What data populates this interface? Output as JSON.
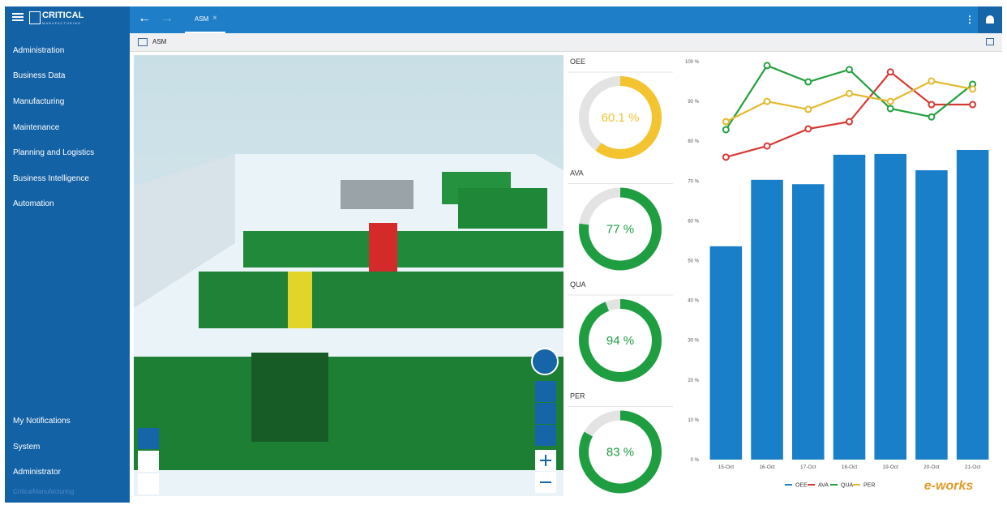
{
  "sidebar": {
    "brand": "CRITICAL",
    "brand_sub": "MANUFACTURING",
    "menu": [
      "Administration",
      "Business Data",
      "Manufacturing",
      "Maintenance",
      "Planning and Logistics",
      "Business Intelligence",
      "Automation"
    ],
    "bottom_menu": [
      "My Notifications",
      "System",
      "Administrator"
    ],
    "footer": "CriticalManufacturing"
  },
  "tab": "ASM",
  "page_title": "ASM",
  "gauges": [
    {
      "name": "OEE",
      "value": 60.1,
      "value_label": "60.1 %",
      "color": "#f4c430"
    },
    {
      "name": "AVA",
      "value": 77,
      "value_label": "77 %",
      "color": "#1e9e40"
    },
    {
      "name": "QUA",
      "value": 94,
      "value_label": "94 %",
      "color": "#1e9e40"
    },
    {
      "name": "PER",
      "value": 83,
      "value_label": "83 %",
      "color": "#1e9e40"
    }
  ],
  "watermark": "e-works",
  "chart_data": {
    "type": "bar",
    "categories": [
      "15-Oct",
      "16-Oct",
      "17-Oct",
      "18-Oct",
      "19-Oct",
      "20-Oct",
      "21-Oct"
    ],
    "series": [
      {
        "name": "OEE",
        "type": "bar",
        "color": "#1a7fc9",
        "values": [
          53.6,
          70.3,
          69.2,
          76.6,
          76.8,
          72.7,
          77.8
        ]
      },
      {
        "name": "AVA",
        "type": "line",
        "color": "#d63a34",
        "values": [
          76,
          78.8,
          83.1,
          84.9,
          97.4,
          89.2,
          89.2
        ]
      },
      {
        "name": "QUA",
        "type": "line",
        "color": "#22a03e",
        "values": [
          82.9,
          99,
          94.9,
          98,
          88.2,
          86.1,
          94.3
        ]
      },
      {
        "name": "PER",
        "type": "line",
        "color": "#e3b92f",
        "values": [
          84.9,
          90,
          88,
          92,
          90,
          95.1,
          93.1
        ]
      }
    ],
    "ylim": [
      0,
      100
    ],
    "yticks": [
      {
        "value": 0,
        "label": "0 %"
      },
      {
        "value": 10,
        "label": "10 %"
      },
      {
        "value": 20,
        "label": "20 %"
      },
      {
        "value": 30,
        "label": "30 %"
      },
      {
        "value": 40,
        "label": "40 %"
      },
      {
        "value": 50,
        "label": "50 %"
      },
      {
        "value": 60,
        "label": "60 %"
      },
      {
        "value": 70,
        "label": "70 %"
      },
      {
        "value": 80,
        "label": "80 %"
      },
      {
        "value": 90,
        "label": "90 %"
      },
      {
        "value": 100,
        "label": "100 %"
      }
    ],
    "legend": "bottom"
  }
}
